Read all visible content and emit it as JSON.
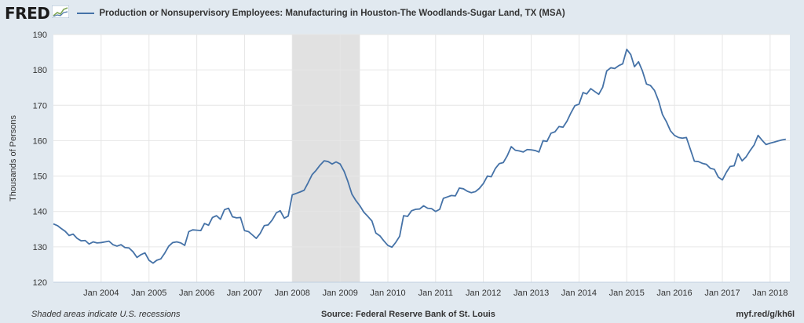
{
  "brand": {
    "name": "FRED"
  },
  "legend": {
    "series_label": "Production or Nonsupervisory Employees: Manufacturing in Houston-The Woodlands-Sugar Land, TX (MSA)"
  },
  "footer": {
    "note": "Shaded areas indicate U.S. recessions",
    "source": "Source: Federal Reserve Bank of St. Louis",
    "link": "myf.red/g/kh6l"
  },
  "chart_data": {
    "type": "line",
    "ylabel": "Thousands of Persons",
    "ylim": [
      120,
      190
    ],
    "yticks": [
      120,
      130,
      140,
      150,
      160,
      170,
      180,
      190
    ],
    "xlim": [
      "2003-01-01",
      "2018-06-01"
    ],
    "xticks": [
      {
        "date": "2004-01-01",
        "label": "Jan 2004"
      },
      {
        "date": "2005-01-01",
        "label": "Jan 2005"
      },
      {
        "date": "2006-01-01",
        "label": "Jan 2006"
      },
      {
        "date": "2007-01-01",
        "label": "Jan 2007"
      },
      {
        "date": "2008-01-01",
        "label": "Jan 2008"
      },
      {
        "date": "2009-01-01",
        "label": "Jan 2009"
      },
      {
        "date": "2010-01-01",
        "label": "Jan 2010"
      },
      {
        "date": "2011-01-01",
        "label": "Jan 2011"
      },
      {
        "date": "2012-01-01",
        "label": "Jan 2012"
      },
      {
        "date": "2013-01-01",
        "label": "Jan 2013"
      },
      {
        "date": "2014-01-01",
        "label": "Jan 2014"
      },
      {
        "date": "2015-01-01",
        "label": "Jan 2015"
      },
      {
        "date": "2016-01-01",
        "label": "Jan 2016"
      },
      {
        "date": "2017-01-01",
        "label": "Jan 2017"
      },
      {
        "date": "2018-01-01",
        "label": "Jan 2018"
      }
    ],
    "grid": true,
    "line_color": "#4572a7",
    "recession_color": "#e1e1e1",
    "recessions": [
      {
        "start": "2008-01-01",
        "end": "2009-06-01"
      }
    ],
    "series": [
      {
        "x": [
          "2003-01",
          "2003-02",
          "2003-03",
          "2003-04",
          "2003-05",
          "2003-06",
          "2003-07",
          "2003-08",
          "2003-09",
          "2003-10",
          "2003-11",
          "2003-12",
          "2004-01",
          "2004-02",
          "2004-03",
          "2004-04",
          "2004-05",
          "2004-06",
          "2004-07",
          "2004-08",
          "2004-09",
          "2004-10",
          "2004-11",
          "2004-12",
          "2005-01",
          "2005-02",
          "2005-03",
          "2005-04",
          "2005-05",
          "2005-06",
          "2005-07",
          "2005-08",
          "2005-09",
          "2005-10",
          "2005-11",
          "2005-12",
          "2006-01",
          "2006-02",
          "2006-03",
          "2006-04",
          "2006-05",
          "2006-06",
          "2006-07",
          "2006-08",
          "2006-09",
          "2006-10",
          "2006-11",
          "2006-12",
          "2007-01",
          "2007-02",
          "2007-03",
          "2007-04",
          "2007-05",
          "2007-06",
          "2007-07",
          "2007-08",
          "2007-09",
          "2007-10",
          "2007-11",
          "2007-12",
          "2008-01",
          "2008-02",
          "2008-03",
          "2008-04",
          "2008-05",
          "2008-06",
          "2008-07",
          "2008-08",
          "2008-09",
          "2008-10",
          "2008-11",
          "2008-12",
          "2009-01",
          "2009-02",
          "2009-03",
          "2009-04",
          "2009-05",
          "2009-06",
          "2009-07",
          "2009-08",
          "2009-09",
          "2009-10",
          "2009-11",
          "2009-12",
          "2010-01",
          "2010-02",
          "2010-03",
          "2010-04",
          "2010-05",
          "2010-06",
          "2010-07",
          "2010-08",
          "2010-09",
          "2010-10",
          "2010-11",
          "2010-12",
          "2011-01",
          "2011-02",
          "2011-03",
          "2011-04",
          "2011-05",
          "2011-06",
          "2011-07",
          "2011-08",
          "2011-09",
          "2011-10",
          "2011-11",
          "2011-12",
          "2012-01",
          "2012-02",
          "2012-03",
          "2012-04",
          "2012-05",
          "2012-06",
          "2012-07",
          "2012-08",
          "2012-09",
          "2012-10",
          "2012-11",
          "2012-12",
          "2013-01",
          "2013-02",
          "2013-03",
          "2013-04",
          "2013-05",
          "2013-06",
          "2013-07",
          "2013-08",
          "2013-09",
          "2013-10",
          "2013-11",
          "2013-12",
          "2014-01",
          "2014-02",
          "2014-03",
          "2014-04",
          "2014-05",
          "2014-06",
          "2014-07",
          "2014-08",
          "2014-09",
          "2014-10",
          "2014-11",
          "2014-12",
          "2015-01",
          "2015-02",
          "2015-03",
          "2015-04",
          "2015-05",
          "2015-06",
          "2015-07",
          "2015-08",
          "2015-09",
          "2015-10",
          "2015-11",
          "2015-12",
          "2016-01",
          "2016-02",
          "2016-03",
          "2016-04",
          "2016-05",
          "2016-06",
          "2016-07",
          "2016-08",
          "2016-09",
          "2016-10",
          "2016-11",
          "2016-12",
          "2017-01",
          "2017-02",
          "2017-03",
          "2017-04",
          "2017-05",
          "2017-06",
          "2017-07",
          "2017-08",
          "2017-09",
          "2017-10",
          "2017-11",
          "2017-12",
          "2018-01",
          "2018-02",
          "2018-03",
          "2018-04",
          "2018-05"
        ],
        "values": [
          136.5,
          136.0,
          135.2,
          134.4,
          133.2,
          133.6,
          132.4,
          131.7,
          131.8,
          130.8,
          131.4,
          131.1,
          131.2,
          131.4,
          131.6,
          130.6,
          130.2,
          130.6,
          129.8,
          129.7,
          128.6,
          127.0,
          127.8,
          128.3,
          126.2,
          125.4,
          126.2,
          126.6,
          128.2,
          130.2,
          131.2,
          131.4,
          131.1,
          130.4,
          134.3,
          134.8,
          134.7,
          134.6,
          136.6,
          136.1,
          138.3,
          138.8,
          137.8,
          140.5,
          140.9,
          138.5,
          138.2,
          138.3,
          134.6,
          134.3,
          133.4,
          132.4,
          133.8,
          136.0,
          136.2,
          137.6,
          139.6,
          140.2,
          138.1,
          138.7,
          144.7,
          145.1,
          145.5,
          146.0,
          148.1,
          150.4,
          151.6,
          153.1,
          154.3,
          154.1,
          153.4,
          154.0,
          153.4,
          151.3,
          148.5,
          144.9,
          143.1,
          141.6,
          139.8,
          138.6,
          137.3,
          133.9,
          133.1,
          131.7,
          130.4,
          129.9,
          131.2,
          133.0,
          138.8,
          138.6,
          140.2,
          140.6,
          140.7,
          141.6,
          140.9,
          140.8,
          140.0,
          140.6,
          143.7,
          144.1,
          144.5,
          144.4,
          146.6,
          146.4,
          145.7,
          145.3,
          145.6,
          146.5,
          147.9,
          150.0,
          149.8,
          152.1,
          153.5,
          153.8,
          155.7,
          158.3,
          157.3,
          157.1,
          156.8,
          157.5,
          157.4,
          157.2,
          156.8,
          160.0,
          159.8,
          162.1,
          162.5,
          164.0,
          163.8,
          165.5,
          167.9,
          169.9,
          170.3,
          173.6,
          173.2,
          174.7,
          173.9,
          173.1,
          175.1,
          179.7,
          180.6,
          180.4,
          181.2,
          181.7,
          185.8,
          184.3,
          180.9,
          182.3,
          179.7,
          176.0,
          175.6,
          174.2,
          171.3,
          167.4,
          165.3,
          162.8,
          161.5,
          160.9,
          160.7,
          160.9,
          157.6,
          154.2,
          154.1,
          153.6,
          153.3,
          152.2,
          151.9,
          149.7,
          148.9,
          151.1,
          152.7,
          152.9,
          156.3,
          154.3,
          155.4,
          157.2,
          158.8,
          161.5,
          160.1,
          158.9,
          159.3,
          159.6,
          159.9,
          160.2,
          160.4
        ]
      }
    ]
  }
}
